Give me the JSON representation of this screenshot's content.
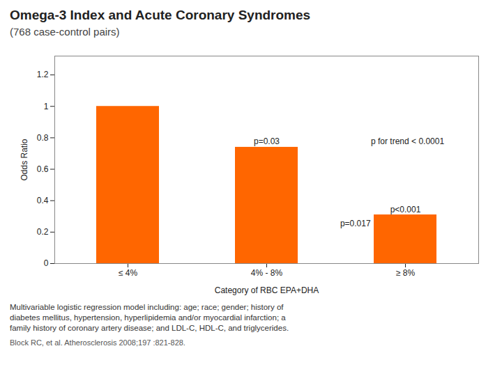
{
  "chart_data": {
    "type": "bar",
    "title": "Omega-3 Index and Acute Coronary Syndromes",
    "subtitle": "(768 case-control pairs)",
    "categories": [
      "≤ 4%",
      "4% - 8%",
      "≥ 8%"
    ],
    "values": [
      1.0,
      0.74,
      0.31
    ],
    "color": "#FF6600",
    "xlabel": "Category of RBC EPA+DHA",
    "ylabel": "Odds Ratio",
    "ylim": [
      0,
      1.32
    ],
    "yticks": [
      0,
      0.2,
      0.4,
      0.6,
      0.8,
      1,
      1.2
    ],
    "grid": false,
    "annotations": [
      "p=0.03",
      "p for trend < 0.0001",
      "p=0.017",
      "p<0.001"
    ],
    "footnotes": [
      "Multivariable logistic regression model including: age; race; gender; history of",
      "diabetes mellitus, hypertension, hyperlipidemia and/or myocardial infarction; a",
      "family history of coronary artery disease; and LDL-C, HDL-C, and triglycerides."
    ],
    "source": "Block RC, et al. Atherosclerosis 2008;197 :821-828."
  }
}
